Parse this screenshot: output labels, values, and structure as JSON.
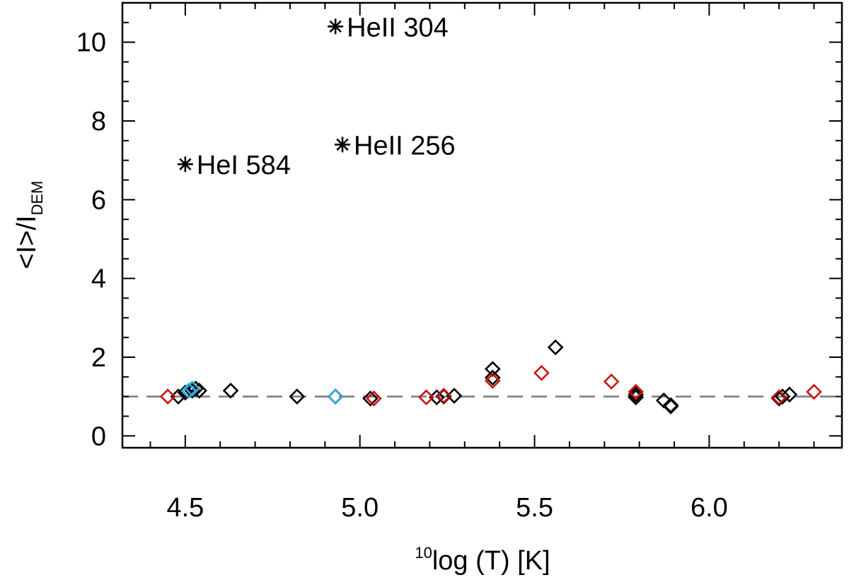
{
  "chart_data": {
    "type": "scatter",
    "xlabel": {
      "sup": "10",
      "main": "log (T) [K]"
    },
    "ylabel": {
      "main": "<I>/I",
      "sub": "DEM"
    },
    "xlim": [
      4.32,
      6.38
    ],
    "ylim": [
      -0.3,
      11.0
    ],
    "x_ticks": [
      4.5,
      5.0,
      5.5,
      6.0
    ],
    "x_tick_labels": [
      "4.5",
      "5.0",
      "5.5",
      "6.0"
    ],
    "y_ticks": [
      0,
      2,
      4,
      6,
      8,
      10
    ],
    "y_tick_labels": [
      "0",
      "2",
      "4",
      "6",
      "8",
      "10"
    ],
    "reference_line": {
      "y": 1.0,
      "style": "dashed",
      "color": "#7a7a7a"
    },
    "grid": false,
    "series": [
      {
        "marker": "diamond",
        "color": "#000000",
        "points": [
          [
            4.48,
            1.0
          ],
          [
            4.5,
            1.1
          ],
          [
            4.52,
            1.15
          ],
          [
            4.53,
            1.2
          ],
          [
            4.54,
            1.15
          ],
          [
            4.63,
            1.15
          ],
          [
            4.82,
            1.0
          ],
          [
            4.93,
            1.0
          ],
          [
            5.03,
            0.95
          ],
          [
            5.22,
            0.98
          ],
          [
            5.24,
            1.0
          ],
          [
            5.27,
            1.02
          ],
          [
            5.38,
            1.7
          ],
          [
            5.38,
            1.48
          ],
          [
            5.56,
            2.25
          ],
          [
            5.79,
            1.05
          ],
          [
            5.79,
            0.98
          ],
          [
            5.87,
            0.9
          ],
          [
            5.89,
            0.78
          ],
          [
            5.89,
            0.75
          ],
          [
            6.2,
            0.95
          ],
          [
            6.21,
            1.0
          ],
          [
            6.23,
            1.05
          ]
        ]
      },
      {
        "marker": "diamond",
        "color": "#cc1111",
        "points": [
          [
            4.45,
            1.0
          ],
          [
            4.93,
            1.0
          ],
          [
            5.04,
            0.95
          ],
          [
            5.19,
            0.98
          ],
          [
            5.24,
            1.02
          ],
          [
            5.38,
            1.4
          ],
          [
            5.52,
            1.6
          ],
          [
            5.72,
            1.38
          ],
          [
            5.79,
            1.12
          ],
          [
            6.2,
            0.98
          ],
          [
            6.3,
            1.12
          ]
        ]
      },
      {
        "marker": "diamond",
        "color": "#2aa8dd",
        "points": [
          [
            4.51,
            1.15
          ],
          [
            4.52,
            1.2
          ],
          [
            4.93,
            1.0
          ]
        ]
      },
      {
        "marker": "asterisk",
        "color": "#000000",
        "points": [
          {
            "x": 4.93,
            "y": 10.4,
            "label": "HeII 304"
          },
          {
            "x": 4.5,
            "y": 6.9,
            "label": "HeI 584"
          },
          {
            "x": 4.95,
            "y": 7.4,
            "label": "HeII 256"
          }
        ]
      }
    ]
  }
}
